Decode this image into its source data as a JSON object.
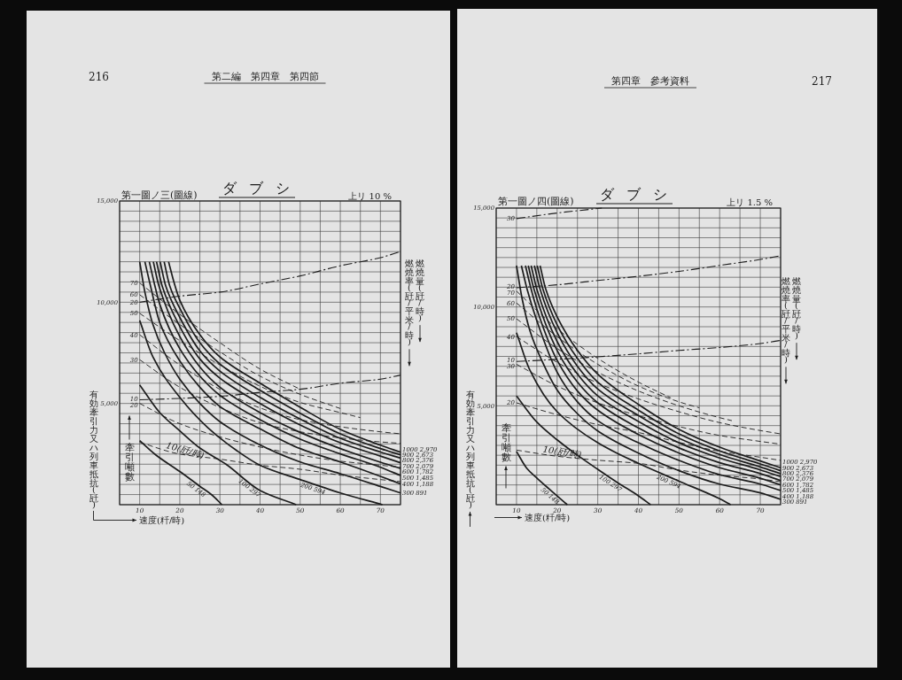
{
  "chart_data": [
    {
      "type": "line",
      "title": "ダブシ",
      "subtitle": "上リ 10 %",
      "xlabel": "速度(粁/時)",
      "ylabel": "有効牽引力又ハ列車抵抗(瓩)",
      "annotations": [
        "第一圖ノ三(圖線)",
        "第二編　第四章　第四節",
        "216",
        "牽引噸數",
        "燃燒量(瓩/時)",
        "燃燒率(瓩/平米/時)"
      ],
      "xlim": [
        5,
        75
      ],
      "ylim": [
        0,
        15000
      ],
      "grid": true,
      "xticks": [
        {
          "value": 5,
          "label": null
        },
        10,
        {
          "value": 15,
          "label": null
        },
        20,
        {
          "value": 25,
          "label": null
        },
        30,
        {
          "value": 35,
          "label": null
        },
        40,
        {
          "value": 45,
          "label": null
        },
        50,
        {
          "value": 55,
          "label": null
        },
        60,
        {
          "value": 65,
          "label": null
        },
        70,
        {
          "value": 75,
          "label": null
        }
      ],
      "yticks": [
        {
          "value": 0,
          "label": null
        },
        {
          "value": 500,
          "label": null
        },
        {
          "value": 1000,
          "label": null
        },
        {
          "value": 1500,
          "label": null
        },
        {
          "value": 2000,
          "label": null
        },
        {
          "value": 2500,
          "label": null
        },
        {
          "value": 3000,
          "label": null
        },
        {
          "value": 3500,
          "label": null
        },
        {
          "value": 4000,
          "label": null
        },
        {
          "value": 4500,
          "label": null
        },
        {
          "value": 5000,
          "label": "5,000"
        },
        {
          "value": 5500,
          "label": null
        },
        {
          "value": 6000,
          "label": null
        },
        {
          "value": 6500,
          "label": null
        },
        {
          "value": 7000,
          "label": null
        },
        {
          "value": 7500,
          "label": null
        },
        {
          "value": 8000,
          "label": null
        },
        {
          "value": 8500,
          "label": null
        },
        {
          "value": 9000,
          "label": null
        },
        {
          "value": 9500,
          "label": null
        },
        {
          "value": 10000,
          "label": "10,000"
        },
        {
          "value": 10500,
          "label": null
        },
        {
          "value": 11000,
          "label": null
        },
        {
          "value": 11500,
          "label": null
        },
        {
          "value": 12000,
          "label": null
        },
        {
          "value": 12500,
          "label": null
        },
        {
          "value": 13000,
          "label": null
        },
        {
          "value": 13500,
          "label": null
        },
        {
          "value": 14000,
          "label": null
        },
        {
          "value": 14500,
          "label": null
        },
        {
          "value": 15000,
          "label": "15,000"
        }
      ],
      "series": [
        {
          "name": "1000 2,970",
          "color": "#1c1c1c",
          "line_style": "solid",
          "x": [
            17.2,
            18.6,
            20,
            25,
            30,
            40,
            50,
            60,
            70,
            75
          ],
          "values": [
            12000,
            10950,
            10100,
            8400,
            7300,
            6000,
            4810,
            3720,
            2940,
            2590
          ]
        },
        {
          "name": "900 2,673",
          "color": "#1c1c1c",
          "line_style": "solid",
          "x": [
            16.1,
            17.5,
            20,
            25,
            30,
            40,
            50,
            60,
            70,
            75
          ],
          "values": [
            12000,
            10800,
            9700,
            8000,
            6950,
            5650,
            4520,
            3500,
            2770,
            2460
          ]
        },
        {
          "name": "800 2,376",
          "color": "#1c1c1c",
          "line_style": "solid",
          "x": [
            15.1,
            16.5,
            20,
            25,
            30,
            40,
            50,
            60,
            70,
            75
          ],
          "values": [
            12000,
            10800,
            9250,
            7600,
            6600,
            5300,
            4230,
            3280,
            2600,
            2300
          ]
        },
        {
          "name": "700 2,079",
          "color": "#1c1c1c",
          "line_style": "solid",
          "x": [
            14.2,
            15.6,
            20,
            25,
            30,
            40,
            50,
            60,
            70,
            75
          ],
          "values": [
            12000,
            10800,
            8800,
            7200,
            6250,
            5000,
            3940,
            3060,
            2400,
            2070
          ]
        },
        {
          "name": "600 1,782",
          "color": "#1c1c1c",
          "line_style": "solid",
          "x": [
            13.4,
            14.8,
            20,
            25,
            30,
            40,
            50,
            60,
            70,
            75
          ],
          "values": [
            12000,
            10800,
            8300,
            6800,
            5800,
            4550,
            3570,
            2770,
            2100,
            1790
          ]
        },
        {
          "name": "500 1,485",
          "color": "#1c1c1c",
          "line_style": "solid",
          "x": [
            12.4,
            13.8,
            15,
            20,
            25,
            30,
            40,
            50,
            60,
            70,
            75
          ],
          "values": [
            12000,
            10800,
            9900,
            7700,
            6350,
            5400,
            4200,
            3240,
            2510,
            1850,
            1440
          ]
        },
        {
          "name": "400 1,188",
          "color": "#1c1c1c",
          "line_style": "solid",
          "x": [
            11.3,
            12.7,
            15,
            20,
            25,
            30,
            40,
            50,
            60,
            70,
            75
          ],
          "values": [
            12000,
            10800,
            9000,
            7100,
            5800,
            4850,
            3750,
            2770,
            2110,
            1400,
            1030
          ]
        },
        {
          "name": "300 891",
          "color": "#1c1c1c",
          "line_style": "solid",
          "x": [
            10,
            11.4,
            13.3,
            16.2,
            20,
            25,
            30,
            40,
            50,
            60,
            70,
            75
          ],
          "values": [
            12000,
            10400,
            8900,
            7500,
            6200,
            5000,
            4100,
            2950,
            2110,
            1530,
            900,
            580
          ]
        },
        {
          "name": "200 594",
          "color": "#1c1c1c",
          "line_style": "solid",
          "x": [
            10,
            13.3,
            20,
            27,
            34,
            40,
            50,
            60,
            70.5
          ],
          "values": [
            9100,
            7300,
            5300,
            3800,
            2700,
            1950,
            1240,
            580,
            0
          ]
        },
        {
          "name": "100 297",
          "color": "#1c1c1c",
          "line_style": "solid",
          "x": [
            10,
            15,
            20,
            25,
            31.5,
            40,
            49
          ],
          "values": [
            5920,
            4550,
            3650,
            2800,
            2000,
            700,
            0
          ]
        },
        {
          "name": "50 148",
          "color": "#1c1c1c",
          "line_style": "solid",
          "x": [
            10,
            14,
            20,
            25,
            28,
            30.5
          ],
          "values": [
            3170,
            2460,
            1640,
            910,
            480,
            0
          ]
        },
        {
          "name": "20",
          "color": "#1c1c1c",
          "line_style": "dashdot",
          "x": [
            10,
            20,
            30,
            40,
            50,
            60,
            70,
            75
          ],
          "values": [
            10000,
            10300,
            10500,
            10900,
            11300,
            11800,
            12200,
            12500
          ]
        },
        {
          "name": "10",
          "color": "#1c1c1c",
          "line_style": "dashdot",
          "x": [
            10,
            20,
            30,
            40,
            50,
            60,
            70,
            75
          ],
          "values": [
            5180,
            5250,
            5350,
            5550,
            5700,
            6000,
            6200,
            6400
          ]
        },
        {
          "name": "70",
          "color": "#1c1c1c",
          "line_style": "dashed",
          "x": [
            10,
            20,
            30,
            40,
            50
          ],
          "values": [
            10950,
            9400,
            8000,
            6700,
            5700
          ]
        },
        {
          "name": "60",
          "color": "#1c1c1c",
          "line_style": "dashed",
          "x": [
            10,
            20,
            30,
            40,
            50,
            60
          ],
          "values": [
            10370,
            8900,
            7550,
            6350,
            5450,
            4750
          ]
        },
        {
          "name": "50",
          "color": "#1c1c1c",
          "line_style": "dashed",
          "x": [
            10,
            20,
            30,
            40,
            50,
            60,
            65
          ],
          "values": [
            9450,
            8100,
            6900,
            5850,
            5050,
            4550,
            4300
          ]
        },
        {
          "name": "40",
          "color": "#1c1c1c",
          "line_style": "dashed",
          "x": [
            10,
            20,
            30,
            40,
            50,
            60,
            70,
            75
          ],
          "values": [
            8390,
            6900,
            5700,
            4780,
            4200,
            3850,
            3600,
            3500
          ]
        },
        {
          "name": "30",
          "color": "#1c1c1c",
          "line_style": "dashed",
          "x": [
            10,
            20,
            30,
            40,
            50,
            60,
            70,
            75
          ],
          "values": [
            7160,
            5800,
            4800,
            4050,
            3600,
            3300,
            3100,
            3030
          ]
        },
        {
          "name": "20",
          "color": "#1c1c1c",
          "line_style": "dashed",
          "x": [
            10,
            20,
            30,
            40,
            50,
            60,
            70,
            75
          ],
          "values": [
            5000,
            4000,
            3350,
            2850,
            2450,
            2150,
            1950,
            1850
          ]
        },
        {
          "name": "10(瓩/時)",
          "color": "#1c1c1c",
          "line_style": "dashed",
          "x": [
            10,
            20,
            30,
            40,
            50,
            60,
            70,
            75
          ],
          "values": [
            3080,
            2500,
            2250,
            1950,
            1750,
            1460,
            1240,
            1140
          ]
        }
      ]
    },
    {
      "type": "line",
      "title": "ダブシ",
      "subtitle": "上リ 1.5 %",
      "xlabel": "速度(粁/時)",
      "ylabel": "有効牽引力又ハ列車抵抗(瓩)",
      "annotations": [
        "第一圖ノ四(圖線)",
        "第四章　參考資料",
        "217",
        "牽引噸數",
        "燃燒量(瓩/時)",
        "燃燒率(瓩/平米/時)"
      ],
      "xlim": [
        5,
        75
      ],
      "ylim": [
        0,
        15000
      ],
      "grid": true,
      "xticks": [
        {
          "value": 5,
          "label": null
        },
        10,
        {
          "value": 15,
          "label": null
        },
        20,
        {
          "value": 25,
          "label": null
        },
        30,
        {
          "value": 35,
          "label": null
        },
        40,
        {
          "value": 45,
          "label": null
        },
        50,
        {
          "value": 55,
          "label": null
        },
        60,
        {
          "value": 65,
          "label": null
        },
        70,
        {
          "value": 75,
          "label": null
        }
      ],
      "yticks": [
        {
          "value": 0,
          "label": null
        },
        {
          "value": 500,
          "label": null
        },
        {
          "value": 1000,
          "label": null
        },
        {
          "value": 1500,
          "label": null
        },
        {
          "value": 2000,
          "label": null
        },
        {
          "value": 2500,
          "label": null
        },
        {
          "value": 3000,
          "label": null
        },
        {
          "value": 3500,
          "label": null
        },
        {
          "value": 4000,
          "label": null
        },
        {
          "value": 4500,
          "label": null
        },
        {
          "value": 5000,
          "label": "5,000"
        },
        {
          "value": 5500,
          "label": null
        },
        {
          "value": 6000,
          "label": null
        },
        {
          "value": 6500,
          "label": null
        },
        {
          "value": 7000,
          "label": null
        },
        {
          "value": 7500,
          "label": null
        },
        {
          "value": 8000,
          "label": null
        },
        {
          "value": 8500,
          "label": null
        },
        {
          "value": 9000,
          "label": null
        },
        {
          "value": 9500,
          "label": null
        },
        {
          "value": 10000,
          "label": "10,000"
        },
        {
          "value": 10500,
          "label": null
        },
        {
          "value": 11000,
          "label": null
        },
        {
          "value": 11500,
          "label": null
        },
        {
          "value": 12000,
          "label": null
        },
        {
          "value": 12500,
          "label": null
        },
        {
          "value": 13000,
          "label": null
        },
        {
          "value": 13500,
          "label": null
        },
        {
          "value": 14000,
          "label": null
        },
        {
          "value": 14500,
          "label": null
        },
        {
          "value": 15000,
          "label": "15,000"
        }
      ],
      "series": [
        {
          "name": "1000 2,970",
          "color": "#1c1c1c",
          "line_style": "solid",
          "x": [
            15.8,
            17.2,
            20,
            25,
            30,
            40,
            50,
            60,
            70,
            75
          ],
          "values": [
            12090,
            10900,
            9500,
            7800,
            6600,
            5070,
            3810,
            2910,
            2210,
            1870
          ]
        },
        {
          "name": "900 2,673",
          "color": "#1c1c1c",
          "line_style": "solid",
          "x": [
            15.1,
            16.5,
            20,
            25,
            30,
            40,
            50,
            60,
            70,
            75
          ],
          "values": [
            12090,
            10900,
            9100,
            7400,
            6200,
            4780,
            3580,
            2720,
            2060,
            1720
          ]
        },
        {
          "name": "800 2,376",
          "color": "#1c1c1c",
          "line_style": "solid",
          "x": [
            14.4,
            15.8,
            20,
            25,
            30,
            40,
            50,
            60,
            70,
            75
          ],
          "values": [
            12090,
            10900,
            8700,
            7000,
            5850,
            4510,
            3360,
            2540,
            1910,
            1570
          ]
        },
        {
          "name": "700 2,079",
          "color": "#1c1c1c",
          "line_style": "solid",
          "x": [
            13.6,
            15,
            20,
            25,
            30,
            40,
            50,
            60,
            70,
            75
          ],
          "values": [
            12090,
            10900,
            8250,
            6600,
            5500,
            4210,
            3130,
            2360,
            1760,
            1420
          ]
        },
        {
          "name": "600 1,782",
          "color": "#1c1c1c",
          "line_style": "solid",
          "x": [
            12.9,
            14.3,
            20,
            25,
            30,
            40,
            50,
            60,
            70,
            75
          ],
          "values": [
            12090,
            10900,
            7800,
            6200,
            5150,
            3880,
            2870,
            2120,
            1570,
            1220
          ]
        },
        {
          "name": "500 1,485",
          "color": "#1c1c1c",
          "line_style": "solid",
          "x": [
            12.2,
            13.6,
            15,
            20,
            25,
            30,
            40,
            50,
            60,
            70,
            75
          ],
          "values": [
            12090,
            10900,
            9900,
            7300,
            5750,
            4780,
            3550,
            2610,
            1870,
            1340,
            1000
          ]
        },
        {
          "name": "400 1,188",
          "color": "#1c1c1c",
          "line_style": "solid",
          "x": [
            11.2,
            12.6,
            15,
            20,
            25,
            30,
            40,
            50,
            60,
            70,
            75
          ],
          "values": [
            12090,
            10900,
            9300,
            6700,
            5200,
            4250,
            3130,
            2240,
            1520,
            1040,
            720
          ]
        },
        {
          "name": "300 891",
          "color": "#1c1c1c",
          "line_style": "solid",
          "x": [
            10,
            11.4,
            13.3,
            16.2,
            20,
            25,
            30,
            40,
            50,
            60,
            70,
            75
          ],
          "values": [
            12090,
            10400,
            8800,
            7300,
            5800,
            4600,
            3730,
            2610,
            1720,
            1040,
            600,
            270
          ]
        },
        {
          "name": "200 594",
          "color": "#1c1c1c",
          "line_style": "solid",
          "x": [
            10,
            13.3,
            20,
            30,
            40,
            50,
            60,
            62.7
          ],
          "values": [
            8700,
            6800,
            4700,
            3130,
            2090,
            1190,
            300,
            0
          ]
        },
        {
          "name": "100 297",
          "color": "#1c1c1c",
          "line_style": "solid",
          "x": [
            10,
            15,
            20,
            25,
            30,
            35,
            40,
            43
          ],
          "values": [
            5500,
            4180,
            3280,
            2500,
            1790,
            1100,
            450,
            0
          ]
        },
        {
          "name": "50 148",
          "color": "#1c1c1c",
          "line_style": "solid",
          "x": [
            10,
            12.5,
            15,
            18,
            22.5
          ],
          "values": [
            2690,
            1850,
            1350,
            800,
            0
          ]
        },
        {
          "name": "30",
          "color": "#1c1c1c",
          "line_style": "dashdot",
          "x": [
            10,
            20,
            31
          ],
          "values": [
            14470,
            14750,
            15000
          ]
        },
        {
          "name": "20",
          "color": "#1c1c1c",
          "line_style": "dashdot",
          "x": [
            10,
            20,
            30,
            40,
            50,
            60,
            70,
            75
          ],
          "values": [
            10970,
            11120,
            11340,
            11550,
            11800,
            12100,
            12400,
            12590
          ]
        },
        {
          "name": "10",
          "color": "#1c1c1c",
          "line_style": "dashdot",
          "x": [
            10,
            20,
            30,
            40,
            50,
            60,
            70,
            75
          ],
          "values": [
            7240,
            7350,
            7480,
            7630,
            7800,
            7950,
            8150,
            8310
          ]
        },
        {
          "name": "70",
          "color": "#1c1c1c",
          "line_style": "dashed",
          "x": [
            10,
            20,
            30,
            40,
            48
          ],
          "values": [
            10800,
            8900,
            7400,
            6200,
            5400
          ]
        },
        {
          "name": "60",
          "color": "#1c1c1c",
          "line_style": "dashed",
          "x": [
            10,
            20,
            30,
            40,
            50,
            55
          ],
          "values": [
            10200,
            8500,
            7100,
            6000,
            5200,
            4900
          ]
        },
        {
          "name": "50",
          "color": "#1c1c1c",
          "line_style": "dashed",
          "x": [
            10,
            20,
            30,
            40,
            50,
            60,
            63
          ],
          "values": [
            9400,
            7900,
            6700,
            5750,
            5000,
            4400,
            4250
          ]
        },
        {
          "name": "40",
          "color": "#1c1c1c",
          "line_style": "dashed",
          "x": [
            10,
            20,
            30,
            40,
            50,
            60,
            70,
            75
          ],
          "values": [
            8500,
            7200,
            6150,
            5350,
            4700,
            4150,
            3750,
            3580
          ]
        },
        {
          "name": "30",
          "color": "#1c1c1c",
          "line_style": "dashed",
          "x": [
            10,
            20,
            30,
            40,
            50,
            60,
            70,
            75
          ],
          "values": [
            7100,
            6000,
            5150,
            4500,
            3950,
            3500,
            3200,
            3060
          ]
        },
        {
          "name": "20",
          "color": "#1c1c1c",
          "line_style": "dashed",
          "x": [
            10,
            20,
            30,
            40,
            50,
            60,
            70,
            75
          ],
          "values": [
            5150,
            4550,
            4050,
            3650,
            3150,
            2700,
            2400,
            2240
          ]
        },
        {
          "name": "10(瓩/時)",
          "color": "#1c1c1c",
          "line_style": "dashed",
          "x": [
            10,
            20,
            30,
            40,
            50,
            60,
            70,
            75
          ],
          "values": [
            2760,
            2450,
            2250,
            2090,
            1750,
            1490,
            1300,
            1160
          ]
        }
      ]
    }
  ]
}
